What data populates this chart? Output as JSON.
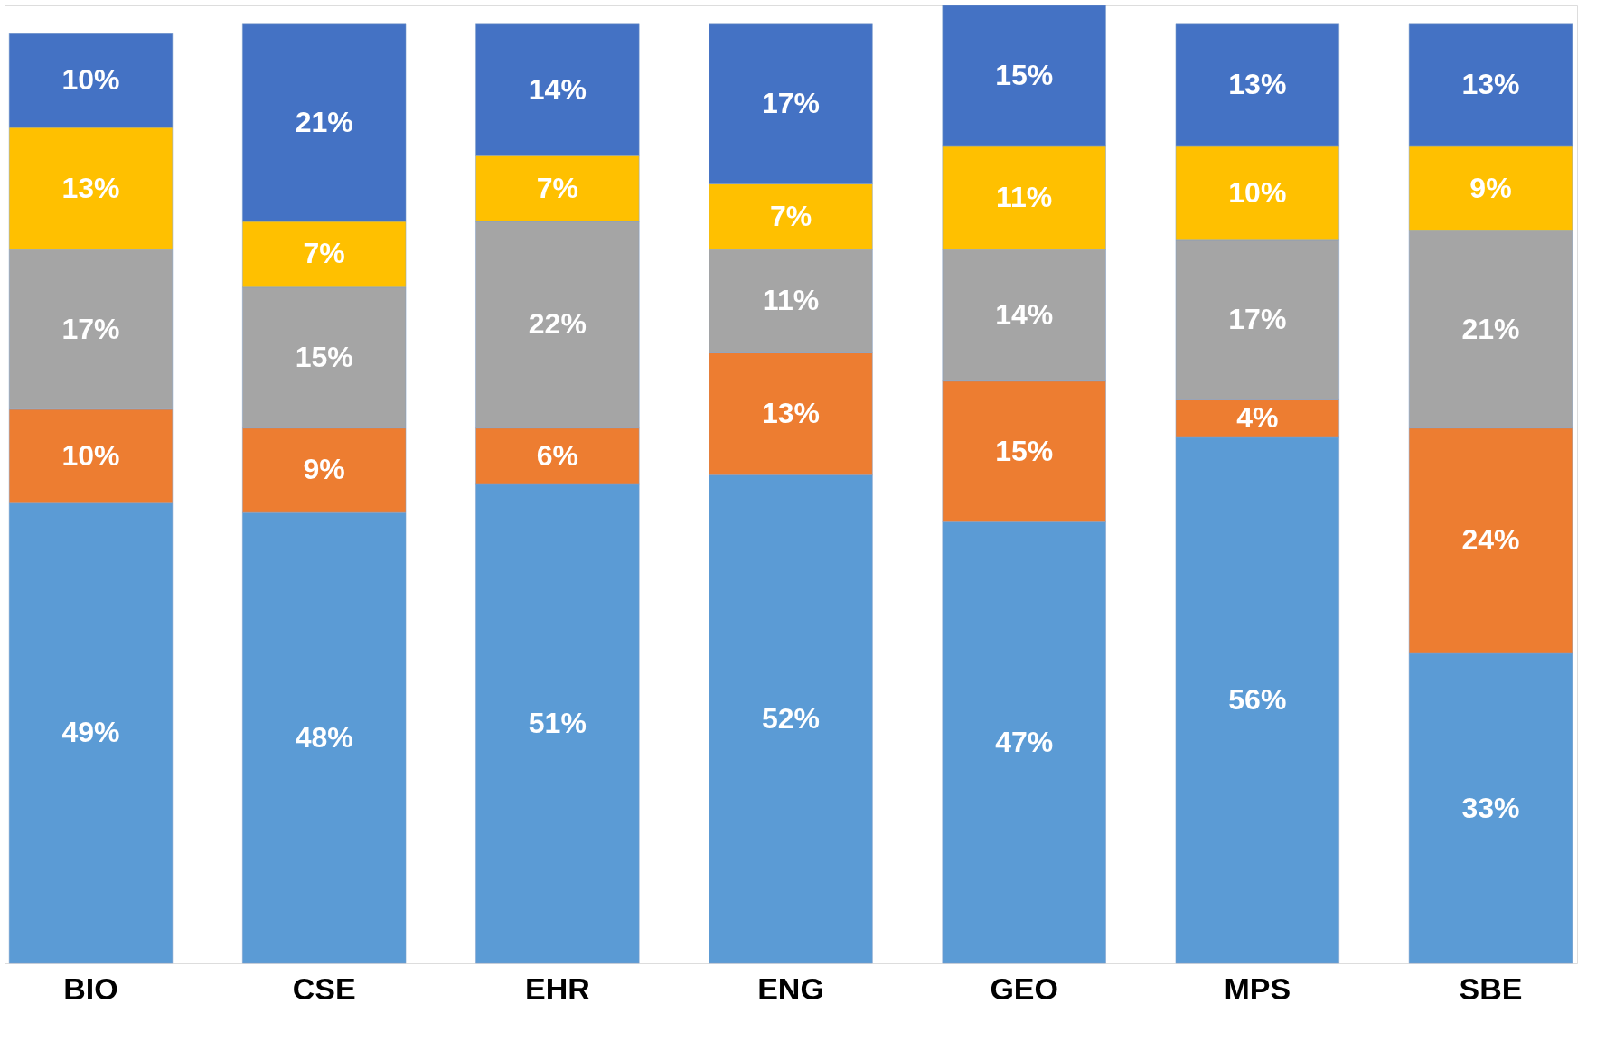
{
  "chart_data": {
    "type": "bar",
    "stacked": true,
    "categories": [
      "BIO",
      "CSE",
      "EHR",
      "ENG",
      "GEO",
      "MPS",
      "SBE"
    ],
    "series": [
      {
        "color": "#5b9bd5",
        "values": [
          49,
          48,
          51,
          52,
          47,
          56,
          33
        ],
        "value_labels": [
          "49%",
          "48%",
          "51%",
          "52%",
          "47%",
          "56%",
          "33%"
        ]
      },
      {
        "color": "#ed7d31",
        "values": [
          10,
          9,
          6,
          13,
          15,
          4,
          24
        ],
        "value_labels": [
          "10%",
          "9%",
          "6%",
          "13%",
          "15%",
          "4%",
          "24%"
        ]
      },
      {
        "color": "#a5a5a5",
        "values": [
          17,
          15,
          22,
          11,
          14,
          17,
          21
        ],
        "value_labels": [
          "17%",
          "15%",
          "22%",
          "11%",
          "14%",
          "17%",
          "21%"
        ]
      },
      {
        "color": "#ffc000",
        "values": [
          13,
          7,
          7,
          7,
          11,
          10,
          9
        ],
        "value_labels": [
          "13%",
          "7%",
          "7%",
          "7%",
          "11%",
          "10%",
          "9%"
        ]
      },
      {
        "color": "#4472c4",
        "values": [
          10,
          21,
          14,
          17,
          15,
          13,
          13
        ],
        "value_labels": [
          "10%",
          "21%",
          "14%",
          "17%",
          "15%",
          "13%",
          "13%"
        ]
      }
    ]
  }
}
